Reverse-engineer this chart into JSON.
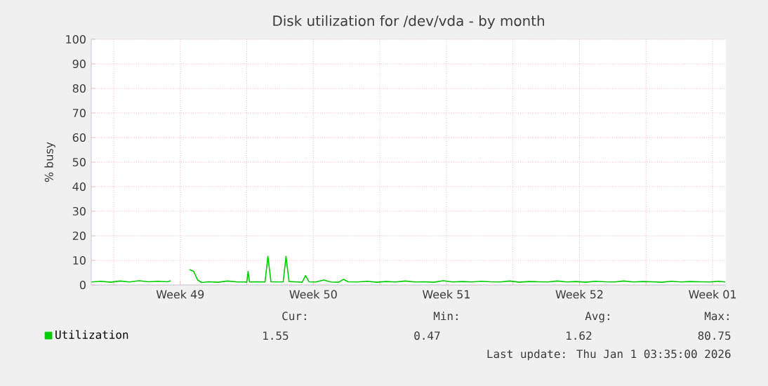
{
  "chart_data": {
    "type": "line",
    "title": "Disk utilization for /dev/vda - by month",
    "ylabel": "% busy",
    "x": [
      "2025-11-29T20:00",
      "2025-11-30T08:00",
      "2025-11-30T20:00",
      "2025-12-01T08:00",
      "2025-12-01T20:00",
      "2025-12-02T08:00",
      "2025-12-02T20:00",
      "2025-12-03T08:00",
      "2025-12-03T20:00",
      "2025-12-04T00:00",
      "2025-12-04T06:00",
      "2025-12-04T23:30",
      "2025-12-05T05:00",
      "2025-12-05T10:00",
      "2025-12-05T15:00",
      "2025-12-06T00:00",
      "2025-12-06T12:00",
      "2025-12-07T00:00",
      "2025-12-07T12:00",
      "2025-12-07T22:00",
      "2025-12-08T00:00",
      "2025-12-08T01:40",
      "2025-12-08T03:30",
      "2025-12-08T12:00",
      "2025-12-08T23:00",
      "2025-12-09T02:40",
      "2025-12-09T06:30",
      "2025-12-09T15:00",
      "2025-12-09T22:00",
      "2025-12-10T01:30",
      "2025-12-10T05:20",
      "2025-12-10T15:00",
      "2025-12-10T22:00",
      "2025-12-11T02:10",
      "2025-12-11T06:30",
      "2025-12-11T15:00",
      "2025-12-12T01:10",
      "2025-12-12T10:00",
      "2025-12-12T20:00",
      "2025-12-13T02:00",
      "2025-12-13T08:00",
      "2025-12-13T20:00",
      "2025-12-14T08:00",
      "2025-12-14T20:00",
      "2025-12-15T08:00",
      "2025-12-15T20:00",
      "2025-12-16T08:00",
      "2025-12-16T20:00",
      "2025-12-17T08:00",
      "2025-12-17T20:00",
      "2025-12-18T08:00",
      "2025-12-18T20:00",
      "2025-12-19T08:00",
      "2025-12-19T20:00",
      "2025-12-20T08:00",
      "2025-12-20T20:00",
      "2025-12-21T08:00",
      "2025-12-21T20:00",
      "2025-12-22T08:00",
      "2025-12-22T20:00",
      "2025-12-23T08:00",
      "2025-12-23T20:00",
      "2025-12-24T08:00",
      "2025-12-24T20:00",
      "2025-12-25T08:00",
      "2025-12-25T20:00",
      "2025-12-26T08:00",
      "2025-12-26T20:00",
      "2025-12-27T08:00",
      "2025-12-27T20:00",
      "2025-12-28T08:00",
      "2025-12-28T20:00",
      "2025-12-29T08:00",
      "2025-12-29T20:00",
      "2025-12-30T08:00",
      "2025-12-30T20:00",
      "2025-12-31T08:00",
      "2025-12-31T20:00",
      "2026-01-01T08:00",
      "2026-01-01T20:00",
      "2026-01-02T04:00"
    ],
    "series": [
      {
        "name": "Utilization",
        "color": "#00cc00",
        "values": [
          1.2,
          1.5,
          1.1,
          1.6,
          1.2,
          1.7,
          1.3,
          1.5,
          1.3,
          1.7,
          null,
          6.3,
          5.5,
          2.0,
          1.0,
          1.3,
          1.1,
          1.6,
          1.2,
          1.2,
          1.1,
          5.5,
          1.2,
          1.3,
          1.2,
          11.6,
          1.3,
          1.2,
          1.3,
          11.6,
          1.4,
          1.2,
          1.1,
          3.8,
          1.3,
          1.2,
          2.0,
          1.2,
          1.1,
          2.3,
          1.3,
          1.2,
          1.5,
          1.1,
          1.4,
          1.2,
          1.6,
          1.2,
          1.3,
          1.1,
          1.7,
          1.2,
          1.4,
          1.2,
          1.5,
          1.3,
          1.2,
          1.6,
          1.1,
          1.4,
          1.3,
          1.2,
          1.6,
          1.2,
          1.4,
          1.1,
          1.5,
          1.3,
          1.2,
          1.6,
          1.2,
          1.4,
          1.3,
          1.1,
          1.5,
          1.2,
          1.4,
          1.3,
          1.2,
          1.5,
          1.2
        ]
      }
    ],
    "xlim": [
      "2025-11-29T19:41",
      "2026-01-02T04:48"
    ],
    "xticks": [
      {
        "value": "2025-12-01",
        "label": null
      },
      {
        "value": "2025-12-04T12:00",
        "label": "Week 49"
      },
      {
        "value": "2025-12-08",
        "label": null
      },
      {
        "value": "2025-12-11T12:00",
        "label": "Week 50"
      },
      {
        "value": "2025-12-15",
        "label": null
      },
      {
        "value": "2025-12-18T12:00",
        "label": "Week 51"
      },
      {
        "value": "2025-12-22",
        "label": null
      },
      {
        "value": "2025-12-25T12:00",
        "label": "Week 52"
      },
      {
        "value": "2025-12-29",
        "label": null
      },
      {
        "value": "2026-01-01T12:00",
        "label": "Week 01"
      }
    ],
    "ylim": [
      0,
      100
    ],
    "yticks": [
      0,
      10,
      20,
      30,
      40,
      50,
      60,
      70,
      80,
      90,
      100
    ],
    "grid": true,
    "legend": "bottom left",
    "marker": "none",
    "line_style": "solid",
    "annotations": [
      "Cur:",
      "Min:",
      "Avg:",
      "Max:",
      "1.55",
      "0.47",
      "1.62",
      "80.75",
      "Last update: Thu Jan  1 03:35:00 2026"
    ]
  }
}
